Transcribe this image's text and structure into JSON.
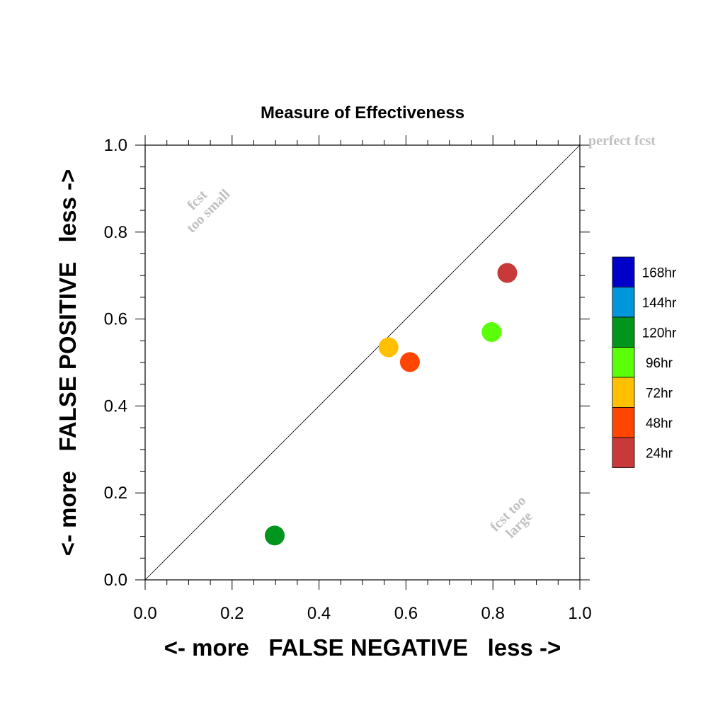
{
  "chart_data": {
    "type": "scatter",
    "title": "Measure of Effectiveness",
    "xlabel": "<- more   FALSE NEGATIVE   less ->",
    "ylabel": "<- more   FALSE POSITIVE   less ->",
    "xlim": [
      0.0,
      1.0
    ],
    "ylim": [
      0.0,
      1.0
    ],
    "x_ticks": [
      "0.0",
      "0.2",
      "0.4",
      "0.6",
      "0.8",
      "1.0"
    ],
    "y_ticks": [
      "0.0",
      "0.2",
      "0.4",
      "0.6",
      "0.8",
      "1.0"
    ],
    "reference_line": {
      "from": [
        0,
        0
      ],
      "to": [
        1,
        1
      ],
      "label": "perfect fcst"
    },
    "annotations": [
      {
        "lines": [
          "fcst",
          "too small"
        ],
        "region": "upper-left"
      },
      {
        "lines": [
          "fcst too",
          "large"
        ],
        "region": "lower-right"
      }
    ],
    "series": [
      {
        "name": "24hr",
        "color": "#c83a3a",
        "x": 0.833,
        "y": 0.706
      },
      {
        "name": "48hr",
        "color": "#ff4500",
        "x": 0.609,
        "y": 0.501
      },
      {
        "name": "72hr",
        "color": "#ffc000",
        "x": 0.56,
        "y": 0.535
      },
      {
        "name": "96hr",
        "color": "#5aff0a",
        "x": 0.797,
        "y": 0.57
      },
      {
        "name": "120hr",
        "color": "#00961e",
        "x": 0.298,
        "y": 0.102
      }
    ],
    "legend": {
      "placement": "right",
      "entries": [
        {
          "label": "168hr",
          "color": "#0000c8"
        },
        {
          "label": "144hr",
          "color": "#0096dc"
        },
        {
          "label": "120hr",
          "color": "#00961e"
        },
        {
          "label": "96hr",
          "color": "#5aff0a"
        },
        {
          "label": "72hr",
          "color": "#ffc000"
        },
        {
          "label": "48hr",
          "color": "#ff4500"
        },
        {
          "label": "24hr",
          "color": "#c83a3a"
        }
      ]
    }
  }
}
